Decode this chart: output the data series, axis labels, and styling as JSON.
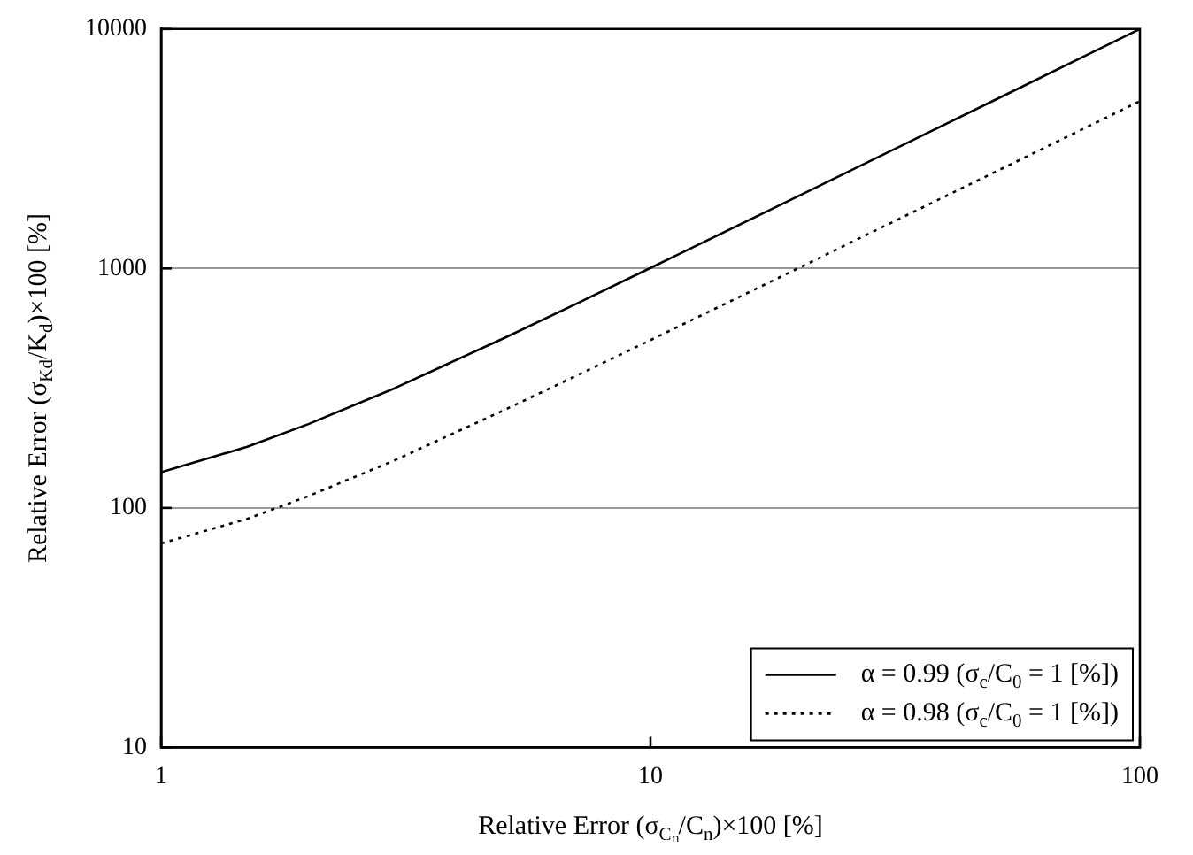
{
  "chart_data": {
    "type": "line",
    "xlabel": "Relative Error (σ$_{Cₙ}$/C$_{n}$)×100 [%]",
    "ylabel": "Relative Error (σ$_{Kd}$/K$_{d}$)×100 [%]",
    "log": "xy",
    "xlim": [
      1,
      100
    ],
    "xticks": [
      1,
      10,
      100
    ],
    "ylim": [
      10,
      10000
    ],
    "yticks": [
      10,
      100,
      1000,
      10000
    ],
    "grid": "y",
    "legend": "bottom right",
    "marker": "none",
    "series": [
      {
        "name": "α = 0.99 (σ$_{c}$/C$_{0}$ = 1 [%])",
        "color": "#000000",
        "line_style": "solid",
        "x": [
          1,
          1.5,
          2,
          3,
          5,
          7,
          10,
          20,
          50,
          100
        ],
        "values": [
          141,
          180,
          224,
          316,
          510,
          707,
          1005,
          2000,
          5000,
          10000
        ]
      },
      {
        "name": "α = 0.98 (σ$_{c}$/C$_{0}$ = 1 [%])",
        "color": "#000000",
        "line_style": "dotted",
        "x": [
          1,
          1.5,
          2,
          3,
          5,
          7,
          10,
          20,
          50,
          100
        ],
        "values": [
          71,
          90,
          112,
          158,
          255,
          354,
          502,
          1000,
          2500,
          5000
        ]
      }
    ]
  }
}
